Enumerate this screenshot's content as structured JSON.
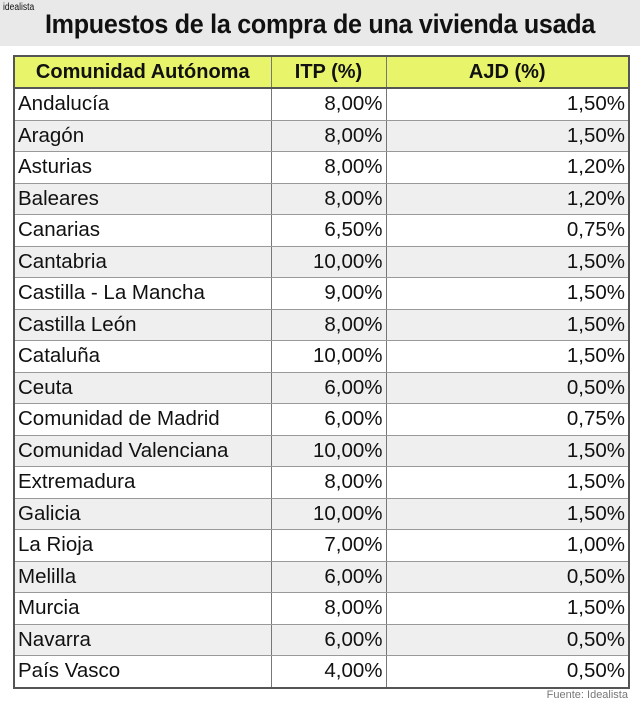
{
  "header": {
    "brand": "idealista",
    "title": "Impuestos de la compra de una vivienda usada"
  },
  "table": {
    "columns": [
      "Comunidad Autónoma",
      "ITP (%)",
      "AJD (%)"
    ],
    "header_color": "#e8f56a",
    "rows": [
      {
        "region": "Andalucía",
        "itp": "8,00%",
        "ajd": "1,50%"
      },
      {
        "region": "Aragón",
        "itp": "8,00%",
        "ajd": "1,50%"
      },
      {
        "region": "Asturias",
        "itp": "8,00%",
        "ajd": "1,20%"
      },
      {
        "region": "Baleares",
        "itp": "8,00%",
        "ajd": "1,20%"
      },
      {
        "region": "Canarias",
        "itp": "6,50%",
        "ajd": "0,75%"
      },
      {
        "region": "Cantabria",
        "itp": "10,00%",
        "ajd": "1,50%"
      },
      {
        "region": "Castilla - La Mancha",
        "itp": "9,00%",
        "ajd": "1,50%"
      },
      {
        "region": "Castilla León",
        "itp": "8,00%",
        "ajd": "1,50%"
      },
      {
        "region": "Cataluña",
        "itp": "10,00%",
        "ajd": "1,50%"
      },
      {
        "region": "Ceuta",
        "itp": "6,00%",
        "ajd": "0,50%"
      },
      {
        "region": "Comunidad de Madrid",
        "itp": "6,00%",
        "ajd": "0,75%"
      },
      {
        "region": "Comunidad Valenciana",
        "itp": "10,00%",
        "ajd": "1,50%"
      },
      {
        "region": "Extremadura",
        "itp": "8,00%",
        "ajd": "1,50%"
      },
      {
        "region": "Galicia",
        "itp": "10,00%",
        "ajd": "1,50%"
      },
      {
        "region": "La Rioja",
        "itp": "7,00%",
        "ajd": "1,00%"
      },
      {
        "region": "Melilla",
        "itp": "6,00%",
        "ajd": "0,50%"
      },
      {
        "region": "Murcia",
        "itp": "8,00%",
        "ajd": "1,50%"
      },
      {
        "region": "Navarra",
        "itp": "6,00%",
        "ajd": "0,50%"
      },
      {
        "region": "País Vasco",
        "itp": "4,00%",
        "ajd": "0,50%"
      }
    ]
  },
  "footer": {
    "source": "Fuente: Idealista"
  }
}
